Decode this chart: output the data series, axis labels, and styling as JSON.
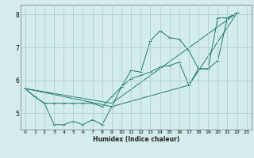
{
  "xlabel": "Humidex (Indice chaleur)",
  "bg_color": "#d4edec",
  "grid_color": "#aed0cc",
  "line_color": "#1a7870",
  "xlim": [
    -0.5,
    23.5
  ],
  "ylim": [
    4.5,
    8.3
  ],
  "yticks": [
    5,
    6,
    7,
    8
  ],
  "xticks": [
    0,
    1,
    2,
    3,
    4,
    5,
    6,
    7,
    8,
    9,
    10,
    11,
    12,
    13,
    14,
    15,
    16,
    17,
    18,
    19,
    20,
    21,
    22,
    23
  ],
  "series1": {
    "points": [
      [
        0,
        5.75
      ],
      [
        1,
        5.5
      ],
      [
        2,
        5.3
      ],
      [
        3,
        4.65
      ],
      [
        4,
        4.65
      ],
      [
        5,
        4.75
      ],
      [
        6,
        4.65
      ],
      [
        7,
        4.8
      ],
      [
        8,
        4.65
      ],
      [
        9,
        5.2
      ],
      [
        10,
        5.8
      ],
      [
        11,
        6.3
      ],
      [
        12,
        6.25
      ],
      [
        13,
        7.2
      ],
      [
        14,
        7.5
      ],
      [
        15,
        7.3
      ],
      [
        16,
        7.25
      ],
      [
        17,
        6.9
      ],
      [
        18,
        6.35
      ],
      [
        19,
        6.35
      ],
      [
        20,
        6.6
      ],
      [
        21,
        7.9
      ],
      [
        22,
        8.05
      ]
    ]
  },
  "series2": {
    "points": [
      [
        0,
        5.75
      ],
      [
        1,
        5.5
      ],
      [
        2,
        5.3
      ],
      [
        3,
        5.3
      ],
      [
        4,
        5.3
      ],
      [
        5,
        5.3
      ],
      [
        6,
        5.3
      ],
      [
        7,
        5.3
      ],
      [
        8,
        5.2
      ],
      [
        9,
        5.5
      ],
      [
        10,
        5.8
      ],
      [
        11,
        6.05
      ],
      [
        12,
        6.15
      ],
      [
        13,
        6.25
      ],
      [
        14,
        6.4
      ],
      [
        15,
        6.45
      ],
      [
        16,
        6.55
      ],
      [
        17,
        5.85
      ],
      [
        18,
        6.35
      ],
      [
        19,
        6.35
      ],
      [
        20,
        7.9
      ],
      [
        21,
        7.9
      ],
      [
        22,
        8.05
      ]
    ]
  },
  "trend1": {
    "points": [
      [
        0,
        5.75
      ],
      [
        9,
        5.3
      ],
      [
        22,
        8.05
      ]
    ]
  },
  "trend2": {
    "points": [
      [
        0,
        5.75
      ],
      [
        9,
        5.2
      ],
      [
        17,
        5.85
      ],
      [
        22,
        8.05
      ]
    ]
  }
}
